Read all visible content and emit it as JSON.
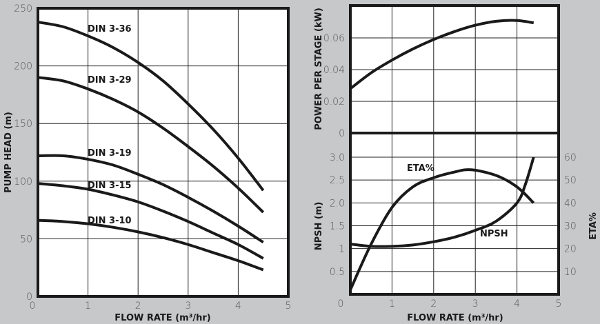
{
  "chart_data": [
    {
      "type": "line",
      "xlabel": "FLOW RATE (m³/hr)",
      "ylabel": "PUMP HEAD (m)",
      "xlim": [
        0,
        5
      ],
      "ylim": [
        0,
        250
      ],
      "xticks": [
        "0",
        "1",
        "2",
        "3",
        "4",
        "5"
      ],
      "yticks": [
        "0",
        "50",
        "100",
        "150",
        "200",
        "250"
      ],
      "grid": true,
      "x": [
        0,
        0.5,
        1,
        1.5,
        2,
        2.5,
        3,
        3.5,
        4,
        4.5
      ],
      "series": [
        {
          "name": "DIN 3-36",
          "values": [
            238,
            234,
            226,
            216,
            203,
            187,
            167,
            145,
            120,
            92
          ]
        },
        {
          "name": "DIN 3-29",
          "values": [
            190,
            187,
            180,
            171,
            160,
            146,
            130,
            113,
            94,
            73
          ]
        },
        {
          "name": "DIN 3-19",
          "values": [
            122,
            122,
            119,
            114,
            106,
            97,
            86,
            74,
            61,
            47
          ]
        },
        {
          "name": "DIN 3-15",
          "values": [
            98,
            96,
            93,
            88,
            82,
            74,
            65,
            55,
            45,
            33
          ]
        },
        {
          "name": "DIN 3-10",
          "values": [
            66,
            65,
            63,
            60,
            56,
            51,
            45,
            38,
            31,
            23
          ]
        }
      ]
    },
    {
      "type": "line",
      "ylabel": "POWER PER STAGE (kW)",
      "xlim": [
        0,
        5
      ],
      "ylim": [
        0,
        0.07
      ],
      "yticks": [
        "0",
        "0.02",
        "0.04",
        "0.06"
      ],
      "grid": true,
      "x": [
        0,
        0.5,
        1,
        1.5,
        2,
        2.5,
        3,
        3.5,
        4,
        4.4
      ],
      "values": [
        0.028,
        0.038,
        0.046,
        0.053,
        0.059,
        0.064,
        0.068,
        0.0705,
        0.071,
        0.0695
      ]
    },
    {
      "type": "line",
      "xlabel": "FLOW RATE (m³/hr)",
      "ylabel": "NPSH (m)",
      "y2label": "ETA%",
      "xlim": [
        0,
        5
      ],
      "ylim": [
        0,
        3.0
      ],
      "y2lim": [
        0,
        60
      ],
      "xticks": [
        "0",
        "1",
        "2",
        "3",
        "4",
        "5"
      ],
      "yticks": [
        "0.5",
        "1",
        "1.5",
        "2.0",
        "2.5",
        "3.0"
      ],
      "y2ticks": [
        "10",
        "20",
        "30",
        "40",
        "50",
        "60"
      ],
      "grid": true,
      "series": [
        {
          "name": "ETA%",
          "axis": "right",
          "x": [
            0,
            0.5,
            1,
            1.5,
            2,
            2.5,
            2.9,
            3.5,
            4,
            4.4
          ],
          "values": [
            2,
            22,
            38,
            47,
            51,
            53.5,
            54.5,
            52,
            47,
            40
          ]
        },
        {
          "name": "NPSH",
          "axis": "left",
          "x": [
            0,
            0.5,
            1,
            1.5,
            2,
            2.5,
            3,
            3.5,
            4,
            4.2,
            4.4
          ],
          "values": [
            1.1,
            1.05,
            1.05,
            1.08,
            1.15,
            1.25,
            1.4,
            1.6,
            2.0,
            2.4,
            3.0
          ]
        }
      ]
    }
  ]
}
